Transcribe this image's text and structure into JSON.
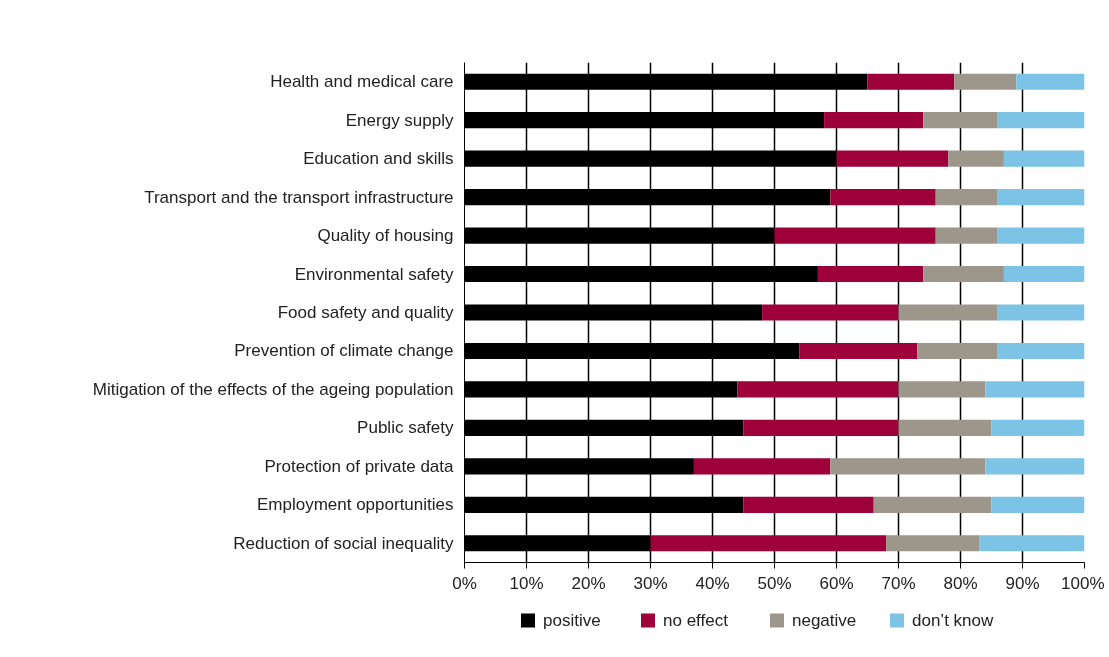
{
  "chart_data": {
    "type": "bar",
    "orientation": "horizontal",
    "stacked": true,
    "categories": [
      "Health and medical care",
      "Energy supply",
      "Education and skills",
      "Transport and the transport infrastructure",
      "Quality of housing",
      "Environmental safety",
      "Food safety and quality",
      "Prevention of climate change",
      "Mitigation of the effects of the ageing population",
      "Public safety",
      "Protection of private data",
      "Employment opportunities",
      "Reduction of social inequality"
    ],
    "series": [
      {
        "name": "positive",
        "color": "#000000",
        "values": [
          65,
          58,
          60,
          59,
          50,
          57,
          48,
          54,
          44,
          45,
          37,
          45,
          30
        ]
      },
      {
        "name": "no effect",
        "color": "#9e003a",
        "values": [
          14,
          16,
          18,
          17,
          26,
          17,
          22,
          19,
          26,
          25,
          22,
          21,
          38
        ]
      },
      {
        "name": "negative",
        "color": "#9d968b",
        "values": [
          10,
          12,
          9,
          10,
          10,
          13,
          16,
          13,
          14,
          15,
          25,
          19,
          15
        ]
      },
      {
        "name": "don’t know",
        "color": "#7dc3e5",
        "values": [
          11,
          14,
          13,
          14,
          14,
          13,
          14,
          14,
          16,
          15,
          16,
          15,
          17
        ]
      }
    ],
    "xlim": [
      0,
      100
    ],
    "xticks": [
      {
        "value": 0,
        "label": "0%"
      },
      {
        "value": 10,
        "label": "10%"
      },
      {
        "value": 20,
        "label": "20%"
      },
      {
        "value": 30,
        "label": "30%"
      },
      {
        "value": 40,
        "label": "40%"
      },
      {
        "value": 50,
        "label": "50%"
      },
      {
        "value": 60,
        "label": "60%"
      },
      {
        "value": 70,
        "label": "70%"
      },
      {
        "value": 80,
        "label": "80%"
      },
      {
        "value": 90,
        "label": "90%"
      },
      {
        "value": 100,
        "label": "100%"
      }
    ],
    "grid": "x",
    "legend": "bottom"
  }
}
